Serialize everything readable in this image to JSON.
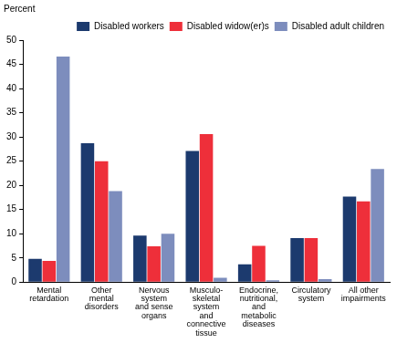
{
  "chart_data": {
    "type": "bar",
    "y_label": "Percent",
    "categories": [
      [
        "Mental",
        "retardation"
      ],
      [
        "Other",
        "mental",
        "disorders"
      ],
      [
        "Nervous",
        "system",
        "and sense",
        "organs"
      ],
      [
        "Musculo-",
        "skeletal",
        "system",
        "and",
        "connective",
        "tissue"
      ],
      [
        "Endocrine,",
        "nutritional,",
        "and",
        "metabolic",
        "diseases"
      ],
      [
        "Circulatory",
        "system"
      ],
      [
        "All other",
        "impairments"
      ]
    ],
    "series": [
      {
        "name": "Disabled workers",
        "color": "#1c3a6e",
        "values": [
          4.8,
          28.7,
          9.6,
          27.1,
          3.7,
          9.1,
          17.7
        ]
      },
      {
        "name": "Disabled widow(er)s",
        "color": "#ee2f3a",
        "values": [
          4.4,
          25.0,
          7.4,
          30.6,
          7.5,
          9.1,
          16.7
        ]
      },
      {
        "name": "Disabled adult children",
        "color": "#7d8dbd",
        "values": [
          46.6,
          18.8,
          10.0,
          0.9,
          0.4,
          0.6,
          23.4
        ]
      }
    ],
    "ylim": [
      0,
      50
    ],
    "yticks": [
      0,
      5,
      10,
      15,
      20,
      25,
      30,
      35,
      40,
      45,
      50
    ],
    "grid": false,
    "legend": "top right"
  }
}
